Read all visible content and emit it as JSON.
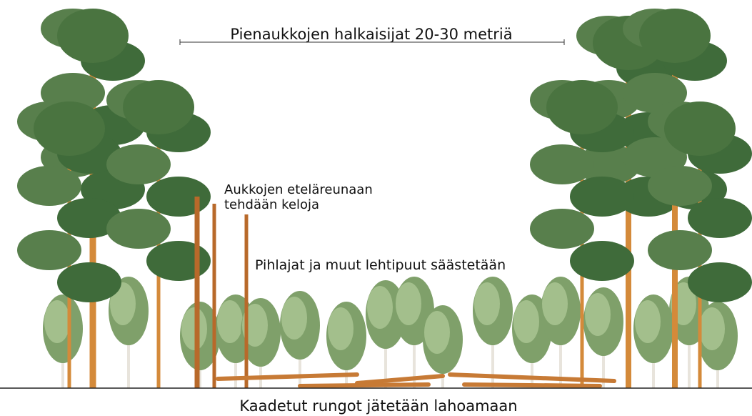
{
  "annotations": {
    "gap_width": "Pienaukkojen halkaisijat 20-30 metriä",
    "snags": [
      "Aukkojen eteläreunaan",
      "tehdään keloja"
    ],
    "deciduous": "Pihlajat ja muut lehtipuut säästetään",
    "felled": "Kaadetut rungot jätetään lahoamaan"
  }
}
